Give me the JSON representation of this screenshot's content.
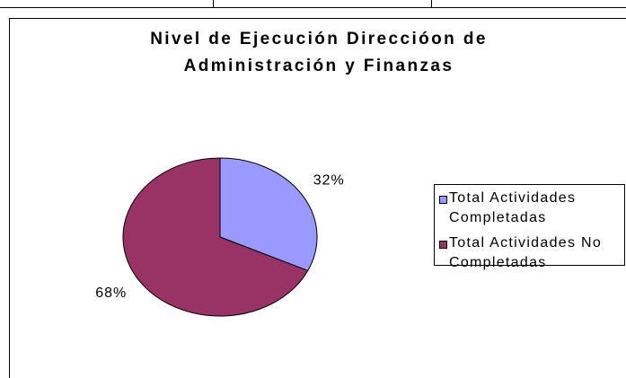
{
  "chart_data": {
    "type": "pie",
    "title": "Nivel de Ejecución Direccióon de Administración y Finanzas",
    "categories": [
      "Total Actividades Completadas",
      "Total Actividades No Completadas"
    ],
    "values": [
      32,
      68
    ],
    "value_labels": [
      "32%",
      "68%"
    ],
    "colors": [
      "#9999ff",
      "#993366"
    ],
    "legend": "right"
  }
}
